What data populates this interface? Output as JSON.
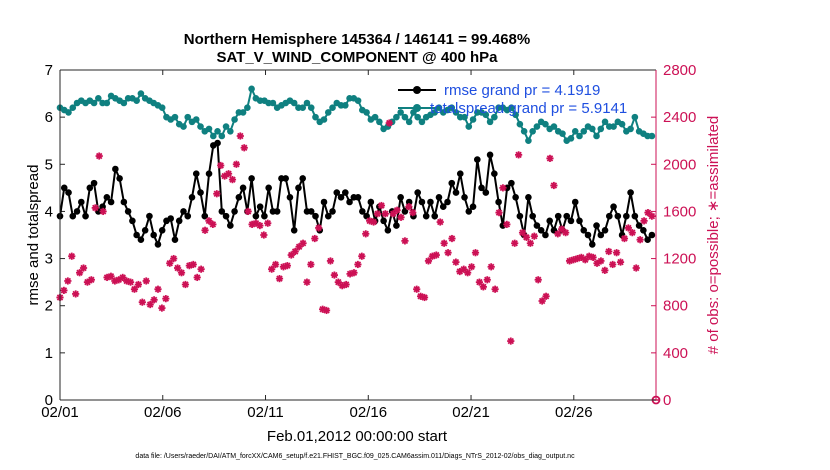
{
  "chart_data": {
    "type": "line",
    "title": "Northern Hemisphere 145364 / 146141 = 99.468%",
    "subtitle": "SAT_V_WIND_COMPONENT @ 400 hPa",
    "xlabel": "Feb.01,2012 00:00:00 start",
    "ylabel": "rmse and totalspread",
    "y2label": "# of obs: o=possible; ∗=assimilated",
    "footnote": "data file: /Users/raeder/DAI/ATM_forcXX/CAM6_setup/f.e21.FHIST_BGC.f09_025.CAM6assim.011/Diags_NTrS_2012-02/obs_diag_output.nc",
    "xlim": [
      1,
      30
    ],
    "ylim": [
      0,
      7
    ],
    "y2lim": [
      0,
      2800
    ],
    "xticks": [
      1,
      6,
      11,
      16,
      21,
      26
    ],
    "xticklabels": [
      "02/01",
      "02/06",
      "02/11",
      "02/16",
      "02/21",
      "02/26"
    ],
    "yticks": [
      0,
      1,
      2,
      3,
      4,
      5,
      6,
      7
    ],
    "y2ticks": [
      0,
      400,
      800,
      1200,
      1600,
      2000,
      2400,
      2800
    ],
    "legend_position": "top-right",
    "colors": {
      "rmse": "#000000",
      "totalspread": "#0f8080",
      "obs": "#cc1155",
      "legend_text": "#1f4fe0",
      "right_axis": "#cc1155"
    },
    "series": [
      {
        "name": "rmse grand pr = 4.1919",
        "axis": "left",
        "values": [
          3.9,
          4.5,
          4.4,
          3.9,
          4.0,
          4.2,
          3.9,
          4.5,
          4.6,
          4.0,
          4.1,
          4.3,
          4.2,
          4.9,
          4.7,
          4.2,
          4.0,
          3.8,
          3.5,
          3.4,
          3.6,
          3.9,
          3.5,
          3.3,
          3.6,
          3.8,
          3.85,
          3.4,
          3.8,
          4.0,
          3.9,
          4.3,
          4.8,
          4.4,
          3.9,
          4.8,
          5.4,
          5.45,
          4.0,
          3.9,
          3.7,
          4.0,
          4.3,
          4.5,
          4.0,
          4.7,
          3.9,
          4.1,
          3.9,
          4.5,
          4.0,
          4.0,
          4.7,
          4.7,
          4.3,
          3.6,
          4.5,
          4.7,
          4.0,
          4.0,
          3.9,
          3.6,
          4.2,
          3.9,
          4.0,
          4.4,
          4.3,
          4.4,
          4.2,
          4.3,
          4.3,
          4.0,
          3.9,
          4.2,
          3.8,
          4.1,
          3.8,
          3.6,
          4.0,
          3.7,
          4.3,
          4.0,
          4.2,
          3.9,
          4.4,
          4.2,
          3.9,
          4.2,
          3.9,
          4.3,
          4.1,
          4.2,
          4.6,
          4.4,
          4.8,
          4.3,
          4.0,
          4.1,
          5.1,
          4.5,
          4.4,
          5.2,
          4.8,
          4.2,
          3.7,
          4.5,
          4.6,
          4.3,
          3.9,
          3.5,
          4.3,
          3.9,
          3.7,
          3.6,
          3.5,
          3.8,
          3.6,
          3.9,
          3.6,
          3.9,
          3.8,
          4.2,
          3.8,
          3.6,
          3.5,
          3.3,
          3.7,
          3.5,
          3.6,
          3.9,
          4.1,
          3.9,
          3.5,
          3.9,
          4.4,
          3.9,
          3.7,
          3.6,
          3.4,
          3.5
        ]
      },
      {
        "name": "totalspread grand pr = 5.9141",
        "axis": "left",
        "values": [
          6.2,
          6.15,
          6.1,
          6.2,
          6.3,
          6.35,
          6.3,
          6.35,
          6.3,
          6.4,
          6.3,
          6.3,
          6.45,
          6.4,
          6.35,
          6.3,
          6.4,
          6.4,
          6.35,
          6.5,
          6.4,
          6.35,
          6.3,
          6.25,
          6.2,
          6.0,
          5.95,
          6.0,
          5.85,
          5.8,
          6.0,
          5.9,
          5.95,
          5.8,
          5.7,
          5.75,
          5.6,
          5.7,
          5.6,
          5.8,
          5.7,
          5.95,
          6.1,
          6.1,
          6.2,
          6.6,
          6.4,
          6.35,
          6.35,
          6.3,
          6.3,
          6.2,
          6.25,
          6.3,
          6.35,
          6.3,
          6.2,
          6.2,
          6.3,
          6.2,
          6.0,
          5.9,
          5.95,
          6.1,
          6.2,
          6.3,
          6.25,
          6.25,
          6.4,
          6.4,
          6.35,
          6.15,
          6.1,
          5.95,
          6.0,
          5.9,
          5.75,
          5.8,
          5.9,
          6.0,
          6.1,
          6.0,
          5.9,
          6.1,
          6.0,
          5.9,
          6.0,
          6.05,
          6.1,
          6.2,
          6.1,
          6.15,
          6.2,
          6.1,
          6.0,
          6.0,
          5.8,
          5.95,
          6.1,
          6.1,
          6.05,
          5.9,
          6.0,
          6.2,
          6.2,
          6.15,
          6.2,
          6.05,
          5.85,
          5.7,
          5.5,
          5.7,
          5.8,
          5.9,
          5.85,
          5.75,
          5.8,
          5.7,
          5.65,
          5.5,
          5.55,
          5.7,
          5.6,
          5.7,
          5.8,
          5.75,
          5.6,
          5.75,
          5.9,
          5.8,
          5.8,
          5.9,
          5.85,
          5.7,
          5.75,
          6.0,
          5.7,
          5.65,
          5.6,
          5.6
        ],
        "range": [
          1,
          30
        ]
      },
      {
        "name": "obs assimilated",
        "axis": "right",
        "values": [
          870,
          930,
          1010,
          1220,
          900,
          1080,
          1120,
          1000,
          1020,
          1630,
          2070,
          1600,
          1040,
          1050,
          1010,
          1020,
          1040,
          1010,
          1000,
          940,
          980,
          830,
          1010,
          810,
          850,
          940,
          780,
          860,
          1160,
          1200,
          1120,
          1080,
          980,
          1140,
          1150,
          1040,
          1110,
          1440,
          1520,
          1490,
          1750,
          1990,
          1900,
          1920,
          1870,
          2000,
          2240,
          2140,
          1600,
          1490,
          1500,
          1480,
          1400,
          1500,
          1110,
          1150,
          1030,
          1130,
          1140,
          1230,
          1260,
          1300,
          1330,
          1000,
          1150,
          1370,
          1460,
          770,
          760,
          1180,
          1060,
          1000,
          970,
          980,
          1070,
          1080,
          1150,
          1220,
          1410,
          1520,
          1510,
          1580,
          1650,
          1580,
          2350,
          1580,
          1610,
          1550,
          1350,
          1640,
          1590,
          940,
          880,
          870,
          1180,
          1220,
          1230,
          1510,
          1330,
          1250,
          1370,
          1170,
          1090,
          1110,
          1080,
          1130,
          1250,
          1000,
          960,
          1020,
          1130,
          940,
          1590,
          1800,
          1490,
          500,
          1330,
          2080,
          1420,
          1380,
          1330,
          1390,
          1020,
          840,
          880,
          2050,
          1820,
          1410,
          1450,
          1420,
          1180,
          1190,
          1200,
          1210,
          1190,
          1220,
          1210,
          1160,
          1180,
          1100,
          1260,
          1150,
          1250,
          1170,
          1370,
          1460,
          1420,
          1120,
          1360,
          1520,
          1590,
          1560
        ]
      }
    ],
    "obs_possible_at_end": 0
  }
}
